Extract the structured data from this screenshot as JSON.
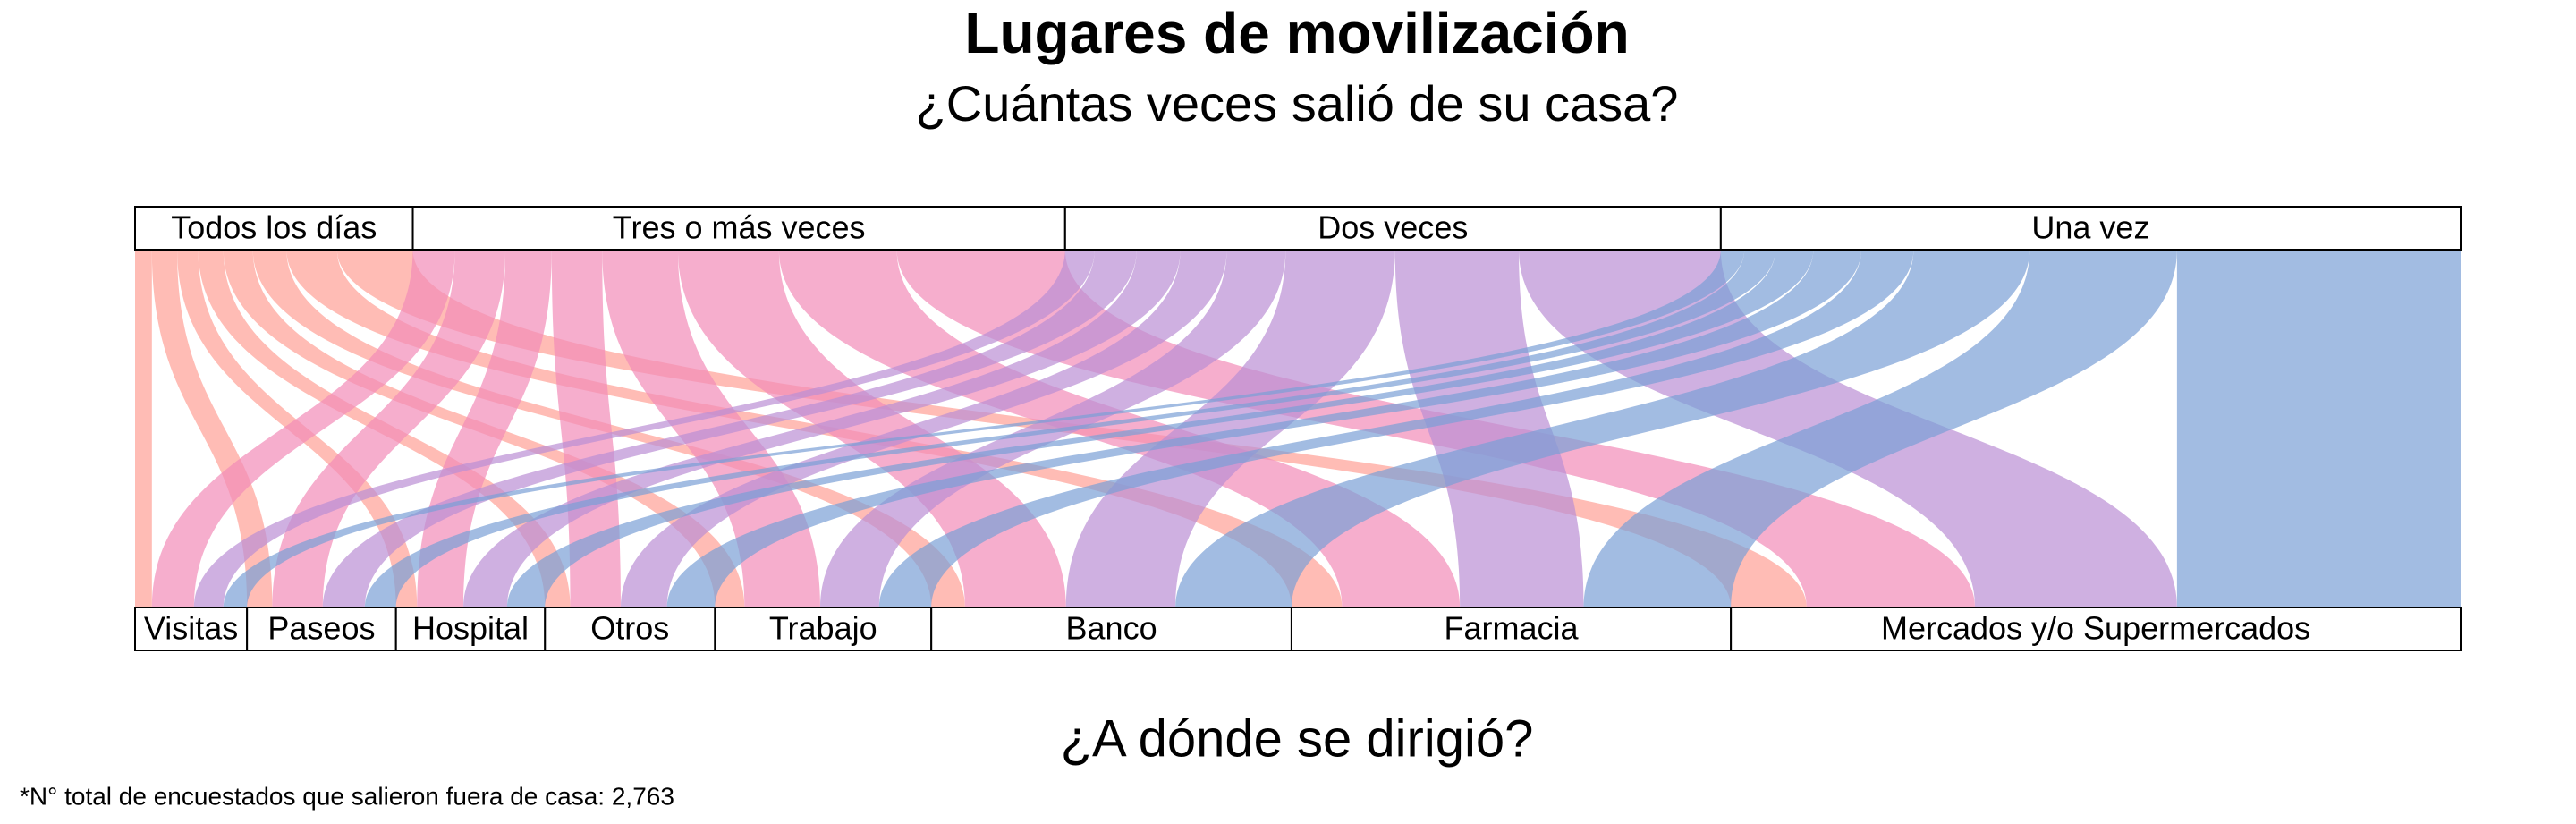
{
  "chart_data": {
    "type": "sankey",
    "title": "Lugares de movilización",
    "subtitle": "¿Cuántas veces salió de su casa?",
    "xlabel": "¿A dónde se dirigió?",
    "note": "*N° total de encuestados que salieron fuera de casa: 2,763",
    "categories": [
      "Visitas",
      "Paseos",
      "Hospital",
      "Otros",
      "Trabajo",
      "Banco",
      "Farmacia",
      "Mercados y/o Supermercados"
    ],
    "series": [
      {
        "name": "Todos los días",
        "color": "#ff9f96",
        "values": [
          20,
          30,
          25,
          30,
          35,
          40,
          60,
          90
        ]
      },
      {
        "name": "Tres o más veces",
        "color": "#f28bb8",
        "values": [
          50,
          60,
          55,
          60,
          90,
          120,
          140,
          200
        ]
      },
      {
        "name": "Dos veces",
        "color": "#bb8fd4",
        "values": [
          35,
          50,
          52,
          55,
          70,
          130,
          147,
          240
        ]
      },
      {
        "name": "Una vez",
        "color": "#7a9fd6",
        "values": [
          28,
          37,
          45,
          57,
          62,
          138,
          175,
          337
        ]
      }
    ]
  }
}
